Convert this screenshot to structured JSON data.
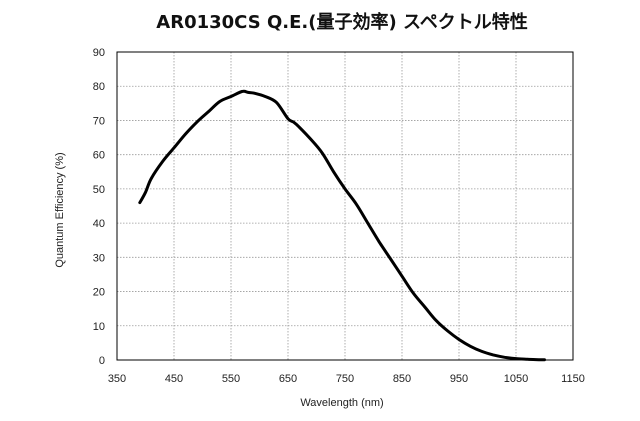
{
  "chart_data": {
    "type": "line",
    "title": "AR0130CS Q.E.(量子効率) スペクトル特性",
    "xlabel": "Wavelength (nm)",
    "ylabel": "Quantum Efficiency (%)",
    "xlim": [
      350,
      1150
    ],
    "ylim": [
      0,
      90
    ],
    "xticks": [
      "350",
      "450",
      "550",
      "650",
      "750",
      "850",
      "950",
      "1050",
      "1150"
    ],
    "yticks": [
      "0",
      "10",
      "20",
      "30",
      "40",
      "50",
      "60",
      "70",
      "80",
      "90"
    ],
    "grid": true,
    "legend": "none",
    "series": [
      {
        "color": "#000000",
        "x": [
          390,
          400,
          410,
          430,
          450,
          470,
          490,
          510,
          530,
          550,
          570,
          580,
          590,
          610,
          630,
          650,
          660,
          670,
          690,
          710,
          730,
          750,
          770,
          790,
          810,
          830,
          850,
          870,
          890,
          910,
          930,
          950,
          970,
          990,
          1010,
          1030,
          1050,
          1070,
          1090,
          1100
        ],
        "y": [
          46,
          49,
          53,
          58,
          62,
          66,
          69.5,
          72.5,
          75.5,
          77,
          78.5,
          78.2,
          78,
          77,
          75.2,
          70.5,
          69.5,
          68,
          64.5,
          60.5,
          55,
          50,
          45.5,
          40,
          34.5,
          29.5,
          24.5,
          19.5,
          15.5,
          11.5,
          8.5,
          6,
          4,
          2.5,
          1.5,
          0.8,
          0.4,
          0.2,
          0.1,
          0.05
        ]
      }
    ]
  }
}
